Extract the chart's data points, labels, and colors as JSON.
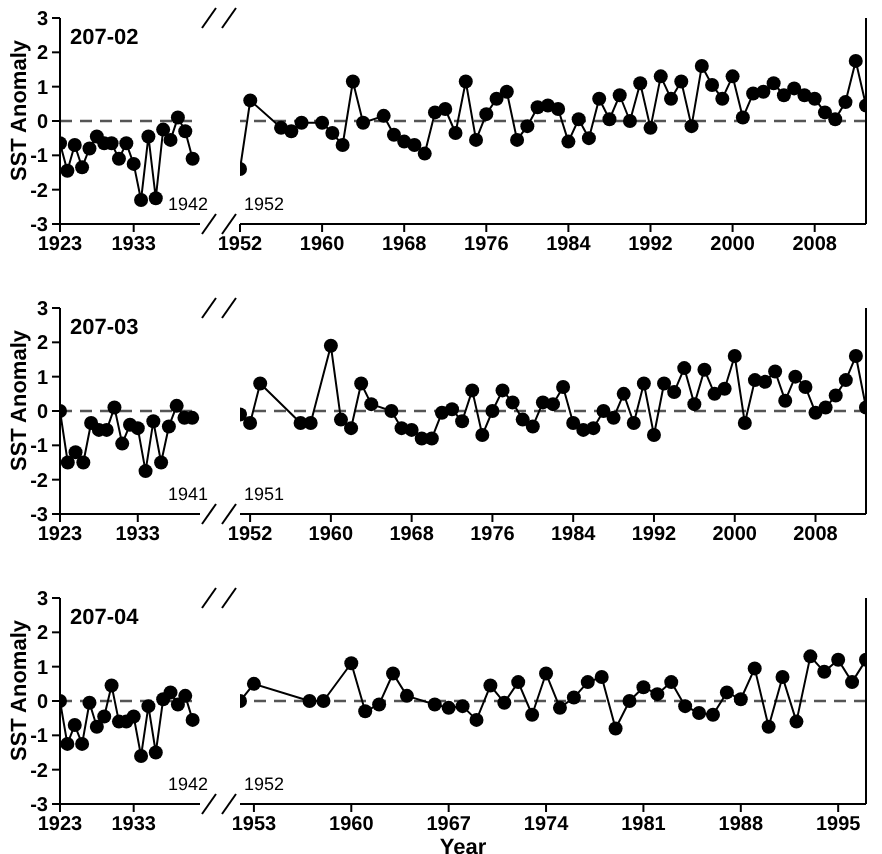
{
  "chart_data": [
    {
      "type": "line",
      "title": "207-02",
      "ylabel": "SST Anomaly",
      "x": [
        1923,
        1924,
        1925,
        1926,
        1927,
        1928,
        1929,
        1930,
        1931,
        1932,
        1933,
        1934,
        1935,
        1936,
        1937,
        1938,
        1939,
        1940,
        1941
      ],
      "series": [
        {
          "color": "#000000",
          "values": [
            -0.65,
            -1.45,
            -0.7,
            -1.35,
            -0.8,
            -0.45,
            -0.65,
            -0.65,
            -1.1,
            -0.65,
            -1.25,
            -2.3,
            -0.45,
            -2.25,
            -0.25,
            -0.55,
            0.1,
            -0.3,
            -1.1
          ]
        }
      ],
      "xlim": [
        1923,
        1942
      ],
      "xticks": [
        1923,
        1933
      ],
      "ylim": [
        -3,
        3
      ],
      "yticks": [
        -3,
        -2,
        -1,
        0,
        1,
        2,
        3
      ],
      "marker": "circle",
      "line_style": "solid",
      "ref_lines": [
        {
          "axis": "y",
          "value": 0,
          "color": "#555555",
          "line_style": "dashed"
        }
      ],
      "annotations": [
        "1942"
      ]
    },
    {
      "type": "line",
      "x": [
        1952,
        1953,
        1956,
        1957,
        1958,
        1960,
        1961,
        1962,
        1963,
        1964,
        1966,
        1967,
        1968,
        1969,
        1970,
        1971,
        1972,
        1973,
        1974,
        1975,
        1976,
        1977,
        1978,
        1979,
        1980,
        1981,
        1982,
        1983,
        1984,
        1985,
        1986,
        1987,
        1988,
        1989,
        1990,
        1991,
        1992,
        1993,
        1994,
        1995,
        1996,
        1997,
        1998,
        1999,
        2000,
        2001,
        2002,
        2003,
        2004,
        2005,
        2006,
        2007,
        2008,
        2009,
        2010,
        2011,
        2012,
        2013
      ],
      "series": [
        {
          "color": "#000000",
          "values": [
            -1.4,
            0.6,
            -0.2,
            -0.3,
            -0.05,
            -0.05,
            -0.35,
            -0.7,
            1.15,
            -0.05,
            0.15,
            -0.4,
            -0.6,
            -0.7,
            -0.95,
            0.25,
            0.35,
            -0.35,
            1.15,
            -0.55,
            0.2,
            0.65,
            0.85,
            -0.55,
            -0.15,
            0.4,
            0.45,
            0.35,
            -0.6,
            0.05,
            -0.5,
            0.65,
            0.05,
            0.75,
            0.0,
            1.1,
            -0.2,
            1.3,
            0.65,
            1.15,
            -0.15,
            1.6,
            1.05,
            0.65,
            1.3,
            0.1,
            0.8,
            0.85,
            1.1,
            0.75,
            0.95,
            0.75,
            0.65,
            0.25,
            0.05,
            0.55,
            1.75,
            0.45
          ]
        }
      ],
      "xlim": [
        1952,
        2013
      ],
      "xticks": [
        1952,
        1960,
        1968,
        1976,
        1984,
        1992,
        2000,
        2008
      ],
      "ylim": [
        -3,
        3
      ],
      "tick_labels": "x",
      "marker": "circle",
      "line_style": "solid",
      "ref_lines": [
        {
          "axis": "y",
          "value": 0,
          "color": "#555555",
          "line_style": "dashed"
        }
      ],
      "annotations": [
        "1952"
      ]
    },
    {
      "type": "line",
      "title": "207-03",
      "ylabel": "SST Anomaly",
      "x": [
        1923,
        1924,
        1925,
        1926,
        1927,
        1928,
        1929,
        1930,
        1931,
        1932,
        1933,
        1934,
        1935,
        1936,
        1937,
        1938,
        1939,
        1940
      ],
      "series": [
        {
          "color": "#000000",
          "values": [
            0,
            -1.5,
            -1.2,
            -1.5,
            -0.35,
            -0.55,
            -0.55,
            0.1,
            -0.95,
            -0.4,
            -0.5,
            -1.75,
            -0.3,
            -1.5,
            -0.45,
            0.15,
            -0.2,
            -0.2
          ]
        }
      ],
      "xlim": [
        1923,
        1941
      ],
      "xticks": [
        1923,
        1933
      ],
      "ylim": [
        -3,
        3
      ],
      "yticks": [
        -3,
        -2,
        -1,
        0,
        1,
        2,
        3
      ],
      "marker": "circle",
      "line_style": "solid",
      "ref_lines": [
        {
          "axis": "y",
          "value": 0,
          "color": "#555555",
          "line_style": "dashed"
        }
      ],
      "annotations": [
        "1941"
      ]
    },
    {
      "type": "line",
      "x": [
        1951,
        1952,
        1953,
        1957,
        1958,
        1960,
        1961,
        1962,
        1963,
        1964,
        1966,
        1967,
        1968,
        1969,
        1970,
        1971,
        1972,
        1973,
        1974,
        1975,
        1976,
        1977,
        1978,
        1979,
        1980,
        1981,
        1982,
        1983,
        1984,
        1985,
        1986,
        1987,
        1988,
        1989,
        1990,
        1991,
        1992,
        1993,
        1994,
        1995,
        1996,
        1997,
        1998,
        1999,
        2000,
        2001,
        2002,
        2003,
        2004,
        2005,
        2006,
        2007,
        2008,
        2009,
        2010,
        2011,
        2012,
        2013
      ],
      "series": [
        {
          "color": "#000000",
          "values": [
            -0.1,
            -0.35,
            0.8,
            -0.35,
            -0.35,
            1.9,
            -0.25,
            -0.5,
            0.8,
            0.2,
            0.0,
            -0.5,
            -0.55,
            -0.8,
            -0.8,
            -0.05,
            0.05,
            -0.3,
            0.6,
            -0.7,
            0.0,
            0.6,
            0.25,
            -0.25,
            -0.45,
            0.25,
            0.2,
            0.7,
            -0.35,
            -0.55,
            -0.5,
            0.0,
            -0.2,
            0.5,
            -0.35,
            0.8,
            -0.7,
            0.8,
            0.55,
            1.25,
            0.2,
            1.2,
            0.5,
            0.65,
            1.6,
            -0.35,
            0.9,
            0.85,
            1.15,
            0.3,
            1.0,
            0.7,
            -0.05,
            0.1,
            0.45,
            0.9,
            1.6,
            0.1
          ]
        }
      ],
      "xlim": [
        1951,
        2013
      ],
      "xticks": [
        1952,
        1960,
        1968,
        1976,
        1984,
        1992,
        2000,
        2008
      ],
      "ylim": [
        -3,
        3
      ],
      "tick_labels": "x",
      "marker": "circle",
      "line_style": "solid",
      "ref_lines": [
        {
          "axis": "y",
          "value": 0,
          "color": "#555555",
          "line_style": "dashed"
        }
      ],
      "annotations": [
        "1951"
      ]
    },
    {
      "type": "line",
      "title": "207-04",
      "ylabel": "SST Anomaly",
      "x": [
        1923,
        1924,
        1925,
        1926,
        1927,
        1928,
        1929,
        1930,
        1931,
        1932,
        1933,
        1934,
        1935,
        1936,
        1937,
        1938,
        1939,
        1940,
        1941
      ],
      "series": [
        {
          "color": "#000000",
          "values": [
            0,
            -1.25,
            -0.7,
            -1.25,
            -0.05,
            -0.75,
            -0.45,
            0.45,
            -0.6,
            -0.6,
            -0.45,
            -1.6,
            -0.15,
            -1.5,
            0.05,
            0.25,
            -0.1,
            0.15,
            -0.55
          ]
        }
      ],
      "xlim": [
        1923,
        1942
      ],
      "xticks": [
        1923,
        1933
      ],
      "ylim": [
        -3,
        3
      ],
      "yticks": [
        -3,
        -2,
        -1,
        0,
        1,
        2,
        3
      ],
      "marker": "circle",
      "line_style": "solid",
      "ref_lines": [
        {
          "axis": "y",
          "value": 0,
          "color": "#555555",
          "line_style": "dashed"
        }
      ],
      "annotations": [
        "1942"
      ]
    },
    {
      "type": "line",
      "xlabel": "Year",
      "x": [
        1952,
        1953,
        1957,
        1958,
        1960,
        1961,
        1962,
        1963,
        1964,
        1966,
        1967,
        1968,
        1969,
        1970,
        1971,
        1972,
        1973,
        1974,
        1975,
        1976,
        1977,
        1978,
        1979,
        1980,
        1981,
        1982,
        1983,
        1984,
        1985,
        1986,
        1987,
        1988,
        1989,
        1990,
        1991,
        1992,
        1993,
        1994,
        1995,
        1996,
        1997
      ],
      "series": [
        {
          "color": "#000000",
          "values": [
            0.0,
            0.5,
            0.0,
            0.0,
            1.1,
            -0.3,
            -0.1,
            0.8,
            0.15,
            -0.1,
            -0.2,
            -0.15,
            -0.55,
            0.45,
            -0.05,
            0.55,
            -0.4,
            0.8,
            -0.2,
            0.1,
            0.55,
            0.7,
            -0.8,
            0.0,
            0.4,
            0.2,
            0.55,
            -0.15,
            -0.35,
            -0.4,
            0.25,
            0.05,
            0.95,
            -0.75,
            0.7,
            -0.6,
            1.3,
            0.85,
            1.2,
            0.55,
            1.2
          ]
        }
      ],
      "xlim": [
        1952,
        1997
      ],
      "xticks": [
        1953,
        1960,
        1967,
        1974,
        1981,
        1988,
        1995
      ],
      "ylim": [
        -3,
        3
      ],
      "tick_labels": "x",
      "marker": "circle",
      "line_style": "solid",
      "ref_lines": [
        {
          "axis": "y",
          "value": 0,
          "color": "#555555",
          "line_style": "dashed"
        }
      ],
      "annotations": [
        "1952"
      ]
    }
  ]
}
